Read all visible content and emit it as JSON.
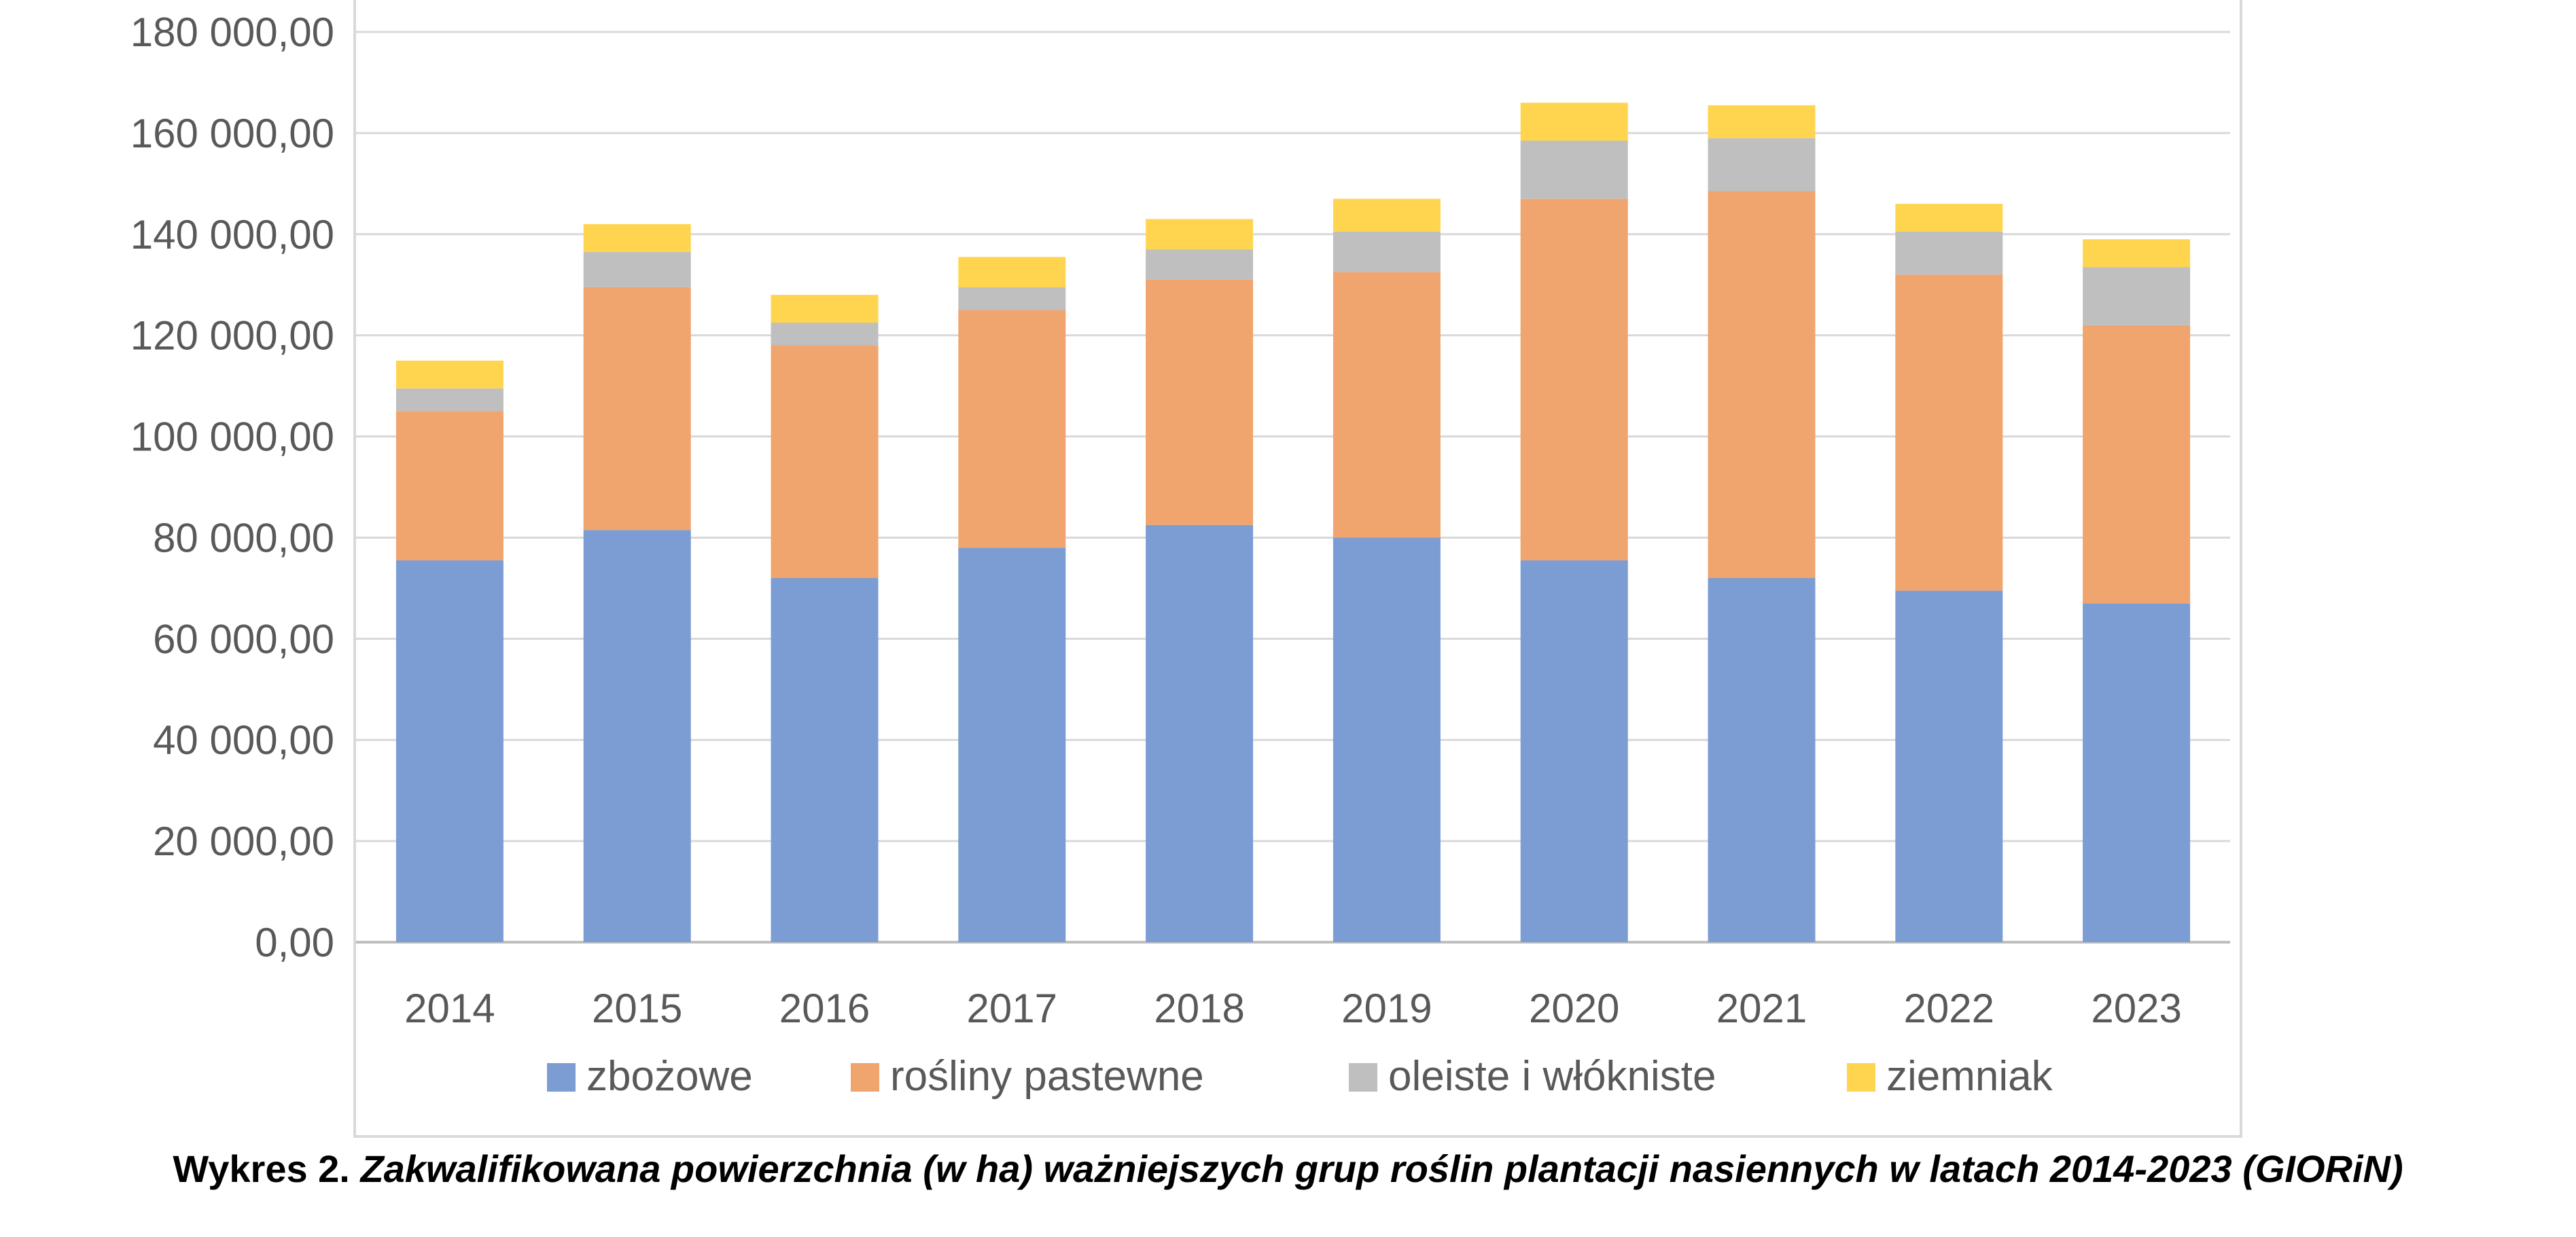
{
  "chart_data": {
    "type": "bar",
    "stacked": true,
    "categories": [
      "2014",
      "2015",
      "2016",
      "2017",
      "2018",
      "2019",
      "2020",
      "2021",
      "2022",
      "2023"
    ],
    "series": [
      {
        "name": "zbożowe",
        "color": "#7b9dd4",
        "values": [
          75500,
          81500,
          72000,
          78000,
          82500,
          80000,
          75500,
          72000,
          69500,
          67000
        ]
      },
      {
        "name": "rośliny pastewne",
        "color": "#f0a46e",
        "values": [
          29500,
          48000,
          46000,
          47000,
          48500,
          52500,
          71500,
          76500,
          62500,
          55000
        ]
      },
      {
        "name": "oleiste i włókniste",
        "color": "#bfbfbf",
        "values": [
          4500,
          7000,
          4500,
          4500,
          6000,
          8000,
          11500,
          10500,
          8500,
          11500
        ]
      },
      {
        "name": "ziemniak",
        "color": "#ffd54f",
        "values": [
          5500,
          5500,
          5500,
          6000,
          6000,
          6500,
          7500,
          6500,
          5500,
          5500
        ]
      }
    ],
    "ylim": [
      0,
      180000
    ],
    "yticks": [
      "0,00",
      "20 000,00",
      "40 000,00",
      "60 000,00",
      "80 000,00",
      "100 000,00",
      "120 000,00",
      "140 000,00",
      "160 000,00",
      "180 000,00"
    ],
    "grid": true,
    "legend": "bottom"
  },
  "caption": {
    "prefix": "Wykres 2.",
    "text": "Zakwalifikowana powierzchnia (w ha) ważniejszych grup roślin plantacji nasiennych w latach 2014-2023 (GIORiN)"
  }
}
